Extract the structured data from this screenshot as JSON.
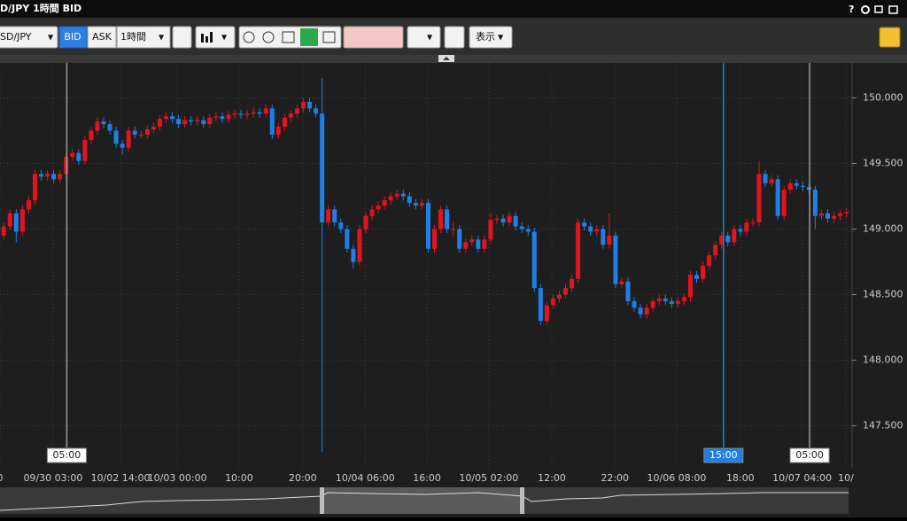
{
  "window": {
    "title": "D/JPY 1時間 BID",
    "help": "?"
  },
  "toolbar": {
    "symbol": "SD/JPY",
    "bid": "BID",
    "ask": "ASK",
    "interval": "1時間",
    "display": "表示"
  },
  "chart_data": {
    "type": "candlestick",
    "up_color": "#e3141e",
    "down_color": "#1f7fe6",
    "grid": true,
    "xlim": [
      -0.6,
      135.9
    ],
    "ylim": [
      147.2,
      150.26
    ],
    "yticks": [
      {
        "value": 147.5,
        "label": "147.500"
      },
      {
        "value": 148,
        "label": "148.000"
      },
      {
        "value": 148.5,
        "label": "148.500"
      },
      {
        "value": 149,
        "label": "149.000"
      },
      {
        "value": 149.5,
        "label": "149.500"
      },
      {
        "value": 150,
        "label": "150.000"
      }
    ],
    "xticks": [
      {
        "value": -0.6,
        "label": "0"
      },
      {
        "value": 7.9,
        "label": "09/30 03:00"
      },
      {
        "value": 18.7,
        "label": "10/02 14:00"
      },
      {
        "value": 27.8,
        "label": "10/03 00:00"
      },
      {
        "value": 37.7,
        "label": "10:00"
      },
      {
        "value": 47.9,
        "label": "20:00"
      },
      {
        "value": 57.9,
        "label": "10/04 06:00"
      },
      {
        "value": 67.8,
        "label": "16:00"
      },
      {
        "value": 77.7,
        "label": "10/05 02:00"
      },
      {
        "value": 87.8,
        "label": "12:00"
      },
      {
        "value": 97.9,
        "label": "22:00"
      },
      {
        "value": 107.8,
        "label": "10/06 08:00"
      },
      {
        "value": 118,
        "label": "18:00"
      },
      {
        "value": 127.9,
        "label": "10/07 04:00"
      },
      {
        "value": 134.9,
        "label": "10/"
      }
    ],
    "markers": [
      {
        "value": 10.1,
        "label": "05:00",
        "color": "#9a9a9a"
      },
      {
        "value": 115.3,
        "label": "15:00",
        "color": "#1f7fe6"
      },
      {
        "value": 129.1,
        "label": "05:00",
        "color": "#9a9a9a"
      }
    ],
    "open": [
      148.95,
      149.02,
      149.12,
      148.98,
      149.15,
      149.22,
      149.42,
      149.4,
      149.42,
      149.38,
      149.42,
      149.55,
      149.58,
      149.52,
      149.68,
      149.75,
      149.82,
      149.8,
      149.75,
      149.65,
      149.62,
      149.75,
      149.72,
      149.72,
      149.76,
      149.78,
      149.84,
      149.86,
      149.84,
      149.8,
      149.83,
      149.82,
      149.83,
      149.8,
      149.85,
      149.86,
      149.84,
      149.87,
      149.88,
      149.87,
      149.88,
      149.89,
      149.88,
      149.92,
      149.72,
      149.78,
      149.85,
      149.88,
      149.92,
      149.97,
      149.92,
      149.88,
      149.05,
      149.15,
      149.05,
      149.0,
      148.85,
      148.75,
      149.0,
      149.1,
      149.15,
      149.18,
      149.22,
      149.25,
      149.27,
      149.25,
      149.2,
      149.18,
      149.2,
      148.85,
      149.0,
      149.15,
      149.0,
      149.0,
      148.85,
      148.9,
      148.92,
      148.85,
      148.92,
      149.07,
      149.08,
      149.05,
      149.1,
      149.02,
      149.0,
      148.98,
      148.55,
      148.3,
      148.42,
      148.47,
      148.5,
      148.55,
      148.62,
      149.05,
      149.02,
      148.98,
      149.0,
      148.88,
      148.95,
      148.58,
      148.6,
      148.45,
      148.4,
      148.35,
      148.4,
      148.45,
      148.47,
      148.45,
      148.43,
      148.45,
      148.48,
      148.65,
      148.62,
      148.72,
      148.8,
      148.88,
      148.95,
      148.9,
      149.0,
      148.98,
      149.05,
      149.05,
      149.42,
      149.35,
      149.38,
      149.1,
      149.3,
      149.35,
      149.33,
      149.32,
      149.3,
      149.1,
      149.12,
      149.08,
      149.1,
      149.12
    ],
    "high": [
      149.05,
      149.15,
      149.15,
      149.18,
      149.25,
      149.45,
      149.45,
      149.45,
      149.45,
      149.45,
      149.58,
      149.61,
      149.61,
      149.71,
      149.78,
      149.85,
      149.85,
      149.83,
      149.78,
      149.68,
      149.78,
      149.78,
      149.75,
      149.79,
      149.81,
      149.87,
      149.89,
      149.89,
      149.87,
      149.86,
      149.86,
      149.86,
      149.86,
      149.88,
      149.89,
      149.89,
      149.9,
      149.91,
      149.91,
      149.91,
      149.92,
      149.92,
      149.95,
      149.95,
      149.81,
      149.88,
      149.91,
      149.95,
      150.0,
      150.0,
      149.95,
      150.15,
      149.18,
      149.18,
      149.08,
      149.03,
      148.88,
      149.03,
      149.13,
      149.18,
      149.21,
      149.25,
      149.28,
      149.3,
      149.3,
      149.28,
      149.23,
      149.23,
      149.23,
      149.03,
      149.18,
      149.18,
      149.05,
      149.03,
      148.93,
      148.95,
      148.95,
      148.95,
      149.12,
      149.11,
      149.11,
      149.13,
      149.13,
      149.05,
      149.03,
      149.01,
      148.58,
      148.45,
      148.5,
      148.53,
      148.58,
      148.65,
      149.08,
      149.08,
      149.05,
      149.03,
      149.03,
      149.12,
      148.98,
      148.63,
      148.63,
      148.48,
      148.43,
      148.43,
      148.48,
      148.5,
      148.5,
      148.48,
      148.48,
      148.51,
      148.68,
      148.68,
      148.75,
      148.83,
      148.91,
      148.98,
      148.98,
      149.03,
      149.03,
      149.08,
      149.08,
      149.52,
      149.45,
      149.41,
      149.41,
      149.33,
      149.38,
      149.38,
      149.36,
      149.35,
      149.33,
      149.15,
      149.15,
      149.13,
      149.15,
      149.16
    ],
    "low": [
      148.92,
      148.99,
      148.9,
      148.95,
      149.12,
      149.19,
      149.37,
      149.37,
      149.35,
      149.35,
      149.39,
      149.52,
      149.49,
      149.49,
      149.65,
      149.72,
      149.77,
      149.72,
      149.62,
      149.57,
      149.59,
      149.69,
      149.69,
      149.69,
      149.73,
      149.75,
      149.81,
      149.81,
      149.77,
      149.77,
      149.79,
      149.79,
      149.77,
      149.77,
      149.82,
      149.81,
      149.81,
      149.84,
      149.84,
      149.84,
      149.85,
      149.85,
      149.85,
      149.69,
      149.69,
      149.75,
      149.82,
      149.85,
      149.89,
      149.89,
      149.85,
      147.3,
      149.02,
      149.02,
      148.97,
      148.82,
      148.7,
      148.72,
      148.97,
      149.07,
      149.12,
      149.15,
      149.19,
      149.22,
      149.22,
      149.17,
      149.15,
      149.15,
      148.82,
      148.82,
      148.97,
      148.97,
      148.95,
      148.82,
      148.82,
      148.87,
      148.82,
      148.82,
      148.89,
      149.04,
      149.02,
      149.02,
      148.99,
      148.97,
      148.95,
      148.52,
      148.27,
      148.27,
      148.39,
      148.44,
      148.47,
      148.52,
      148.59,
      148.99,
      148.95,
      148.95,
      148.85,
      148.85,
      148.55,
      148.55,
      148.42,
      148.37,
      148.32,
      148.32,
      148.37,
      148.42,
      148.42,
      148.4,
      148.4,
      148.42,
      148.45,
      148.59,
      148.59,
      148.69,
      148.77,
      148.85,
      148.87,
      148.87,
      148.95,
      148.95,
      149.02,
      149.02,
      149.32,
      149.32,
      149.07,
      149.07,
      149.27,
      149.3,
      149.29,
      149.27,
      149.0,
      149.07,
      149.05,
      149.05,
      149.07,
      149.09
    ],
    "close": [
      149.02,
      149.12,
      148.98,
      149.15,
      149.22,
      149.42,
      149.4,
      149.42,
      149.38,
      149.42,
      149.55,
      149.58,
      149.52,
      149.68,
      149.75,
      149.82,
      149.8,
      149.75,
      149.65,
      149.62,
      149.75,
      149.72,
      149.72,
      149.76,
      149.78,
      149.84,
      149.86,
      149.84,
      149.8,
      149.83,
      149.82,
      149.83,
      149.8,
      149.85,
      149.86,
      149.84,
      149.87,
      149.88,
      149.87,
      149.88,
      149.89,
      149.88,
      149.92,
      149.72,
      149.78,
      149.85,
      149.88,
      149.92,
      149.97,
      149.92,
      149.88,
      149.05,
      149.15,
      149.05,
      149.0,
      148.85,
      148.75,
      149.0,
      149.1,
      149.15,
      149.18,
      149.22,
      149.25,
      149.27,
      149.25,
      149.2,
      149.18,
      149.2,
      148.85,
      149.0,
      149.15,
      149.0,
      149.0,
      148.85,
      148.9,
      148.92,
      148.85,
      148.92,
      149.07,
      149.08,
      149.05,
      149.1,
      149.02,
      149.0,
      148.98,
      148.55,
      148.3,
      148.42,
      148.47,
      148.5,
      148.55,
      148.62,
      149.05,
      149.02,
      148.98,
      149.0,
      148.88,
      148.95,
      148.58,
      148.6,
      148.45,
      148.4,
      148.35,
      148.4,
      148.45,
      148.47,
      148.45,
      148.43,
      148.45,
      148.48,
      148.65,
      148.62,
      148.72,
      148.8,
      148.88,
      148.95,
      148.9,
      149.0,
      148.98,
      149.05,
      149.05,
      149.42,
      149.35,
      149.38,
      149.1,
      149.3,
      149.35,
      149.33,
      149.32,
      149.3,
      149.1,
      149.12,
      149.08,
      149.1,
      149.12,
      149.13
    ]
  }
}
